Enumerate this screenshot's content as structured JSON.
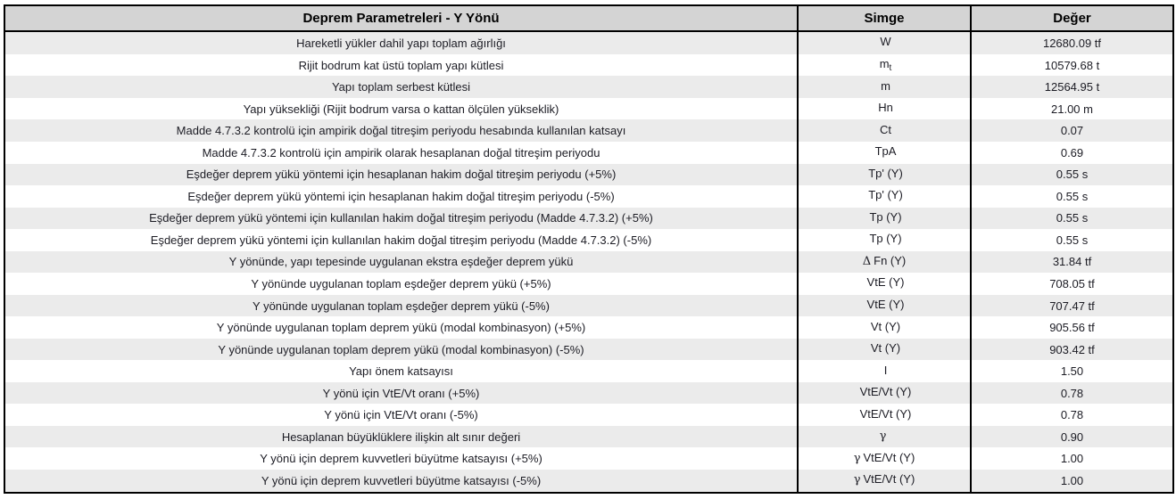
{
  "colors": {
    "header_bg": "#d4d4d4",
    "stripe_bg": "#ebebeb",
    "row_bg": "#ffffff",
    "border": "#000000",
    "text": "#1c1c24"
  },
  "table": {
    "title": "Deprem Parametreleri - Y Yönü",
    "col_symbol": "Simge",
    "col_value": "Değer",
    "rows": [
      {
        "param": "Hareketli yükler dahil yapı toplam ağırlığı",
        "sym": "W",
        "value": "12680.09 tf"
      },
      {
        "param": "Rijit bodrum kat üstü toplam yapı kütlesi",
        "sym": "m",
        "sym_sub": "t",
        "value": "10579.68 t"
      },
      {
        "param": "Yapı toplam serbest kütlesi",
        "sym": "m",
        "value": "12564.95 t"
      },
      {
        "param": "Yapı yüksekliği (Rijit bodrum varsa o kattan ölçülen yükseklik)",
        "sym": "Hn",
        "value": "21.00 m"
      },
      {
        "param": "Madde 4.7.3.2 kontrolü için ampirik doğal titreşim periyodu hesabında kullanılan katsayı",
        "sym": "Ct",
        "value": "0.07"
      },
      {
        "param": "Madde 4.7.3.2 kontrolü için ampirik olarak hesaplanan doğal titreşim periyodu",
        "sym": "TpA",
        "value": "0.69"
      },
      {
        "param": "Eşdeğer deprem yükü yöntemi için hesaplanan hakim doğal titreşim periyodu  (+5%)",
        "sym": "Tp' (Y)",
        "value": "0.55 s"
      },
      {
        "param": "Eşdeğer deprem yükü yöntemi için hesaplanan hakim doğal titreşim periyodu  (-5%)",
        "sym": "Tp' (Y)",
        "value": "0.55 s"
      },
      {
        "param": "Eşdeğer deprem yükü yöntemi için kullanılan hakim doğal titreşim periyodu (Madde 4.7.3.2) (+5%)",
        "sym": "Tp (Y)",
        "value": "0.55 s"
      },
      {
        "param": "Eşdeğer deprem yükü yöntemi için kullanılan hakim doğal titreşim periyodu (Madde 4.7.3.2) (-5%)",
        "sym": "Tp (Y)",
        "value": "0.55 s"
      },
      {
        "param": "Y yönünde, yapı tepesinde uygulanan ekstra eşdeğer deprem yükü",
        "sym_pre": "Δ",
        "sym": "Fn (Y)",
        "value": "31.84 tf"
      },
      {
        "param": "Y yönünde uygulanan toplam eşdeğer deprem yükü (+5%)",
        "sym": "VtE (Y)",
        "value": "708.05 tf"
      },
      {
        "param": "Y yönünde uygulanan toplam eşdeğer deprem yükü (-5%)",
        "sym": "VtE (Y)",
        "value": "707.47 tf"
      },
      {
        "param": "Y yönünde uygulanan toplam deprem yükü (modal kombinasyon) (+5%)",
        "sym": "Vt (Y)",
        "value": "905.56 tf"
      },
      {
        "param": "Y yönünde uygulanan toplam deprem yükü (modal kombinasyon) (-5%)",
        "sym": "Vt (Y)",
        "value": "903.42 tf"
      },
      {
        "param": "Yapı önem katsayısı",
        "sym": "I",
        "value": "1.50"
      },
      {
        "param": "Y yönü için VtE/Vt oranı (+5%)",
        "sym": "VtE/Vt (Y)",
        "value": "0.78"
      },
      {
        "param": "Y yönü için VtE/Vt oranı (-5%)",
        "sym": "VtE/Vt (Y)",
        "value": "0.78"
      },
      {
        "param": "Hesaplanan büyüklüklere ilişkin alt sınır değeri",
        "sym_pre": "γ",
        "value": "0.90"
      },
      {
        "param": "Y yönü için deprem kuvvetleri büyütme katsayısı (+5%)",
        "sym_pre": "γ",
        "sym": "VtE/Vt (Y)",
        "value": "1.00"
      },
      {
        "param": "Y yönü için deprem kuvvetleri büyütme katsayısı (-5%)",
        "sym_pre": "γ",
        "sym": "VtE/Vt (Y)",
        "value": "1.00"
      }
    ]
  }
}
